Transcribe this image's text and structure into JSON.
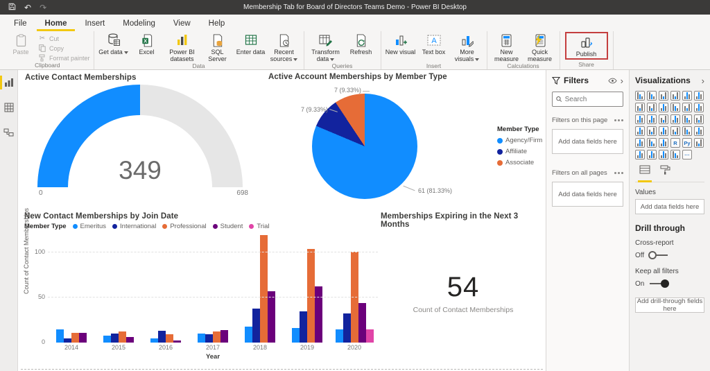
{
  "titlebar": {
    "title": "Membership Tab for Board of Directors Teams Demo - Power BI Desktop"
  },
  "ribbon": {
    "tabs": [
      "File",
      "Home",
      "Insert",
      "Modeling",
      "View",
      "Help"
    ],
    "active_tab": "Home",
    "groups": {
      "clipboard": {
        "label": "Clipboard",
        "paste": "Paste",
        "cut": "Cut",
        "copy": "Copy",
        "format_painter": "Format painter"
      },
      "data": {
        "label": "Data",
        "get_data": "Get data",
        "excel": "Excel",
        "power_bi_datasets": "Power BI datasets",
        "sql_server": "SQL Server",
        "enter_data": "Enter data",
        "recent_sources": "Recent sources"
      },
      "queries": {
        "label": "Queries",
        "transform_data": "Transform data",
        "refresh": "Refresh"
      },
      "insert": {
        "label": "Insert",
        "new_visual": "New visual",
        "text_box": "Text box",
        "more_visuals": "More visuals"
      },
      "calculations": {
        "label": "Calculations",
        "new_measure": "New measure",
        "quick_measure": "Quick measure"
      },
      "share": {
        "label": "Share",
        "publish": "Publish"
      }
    }
  },
  "sidebar": {
    "items": [
      {
        "name": "report-view",
        "active": true
      },
      {
        "name": "data-view",
        "active": false
      },
      {
        "name": "model-view",
        "active": false
      }
    ]
  },
  "chart_data": [
    {
      "type": "gauge",
      "title": "Active Contact Memberships",
      "value": 349,
      "min": 0,
      "max": 698,
      "fill_color": "#118DFF",
      "track_color": "#E6E6E6"
    },
    {
      "type": "pie",
      "title": "Active Account Memberships by Member Type",
      "legend_title": "Member Type",
      "legend_position": "right",
      "categories": [
        "Agency/Firm",
        "Affiliate",
        "Associate"
      ],
      "values": [
        61,
        7,
        7
      ],
      "percent_labels": [
        "61 (81.33%)",
        "7 (9.33%)",
        "7 (9.33%)"
      ],
      "colors": [
        "#118DFF",
        "#12239E",
        "#E66C37"
      ]
    },
    {
      "type": "bar",
      "title": "New Contact Memberships by Join Date",
      "legend_title": "Member Type",
      "legend_position": "top",
      "xlabel": "Year",
      "ylabel": "Count of Contact Memberships",
      "yticks": [
        0,
        50,
        100
      ],
      "ylim": [
        0,
        122
      ],
      "categories": [
        "2014",
        "2015",
        "2016",
        "2017",
        "2018",
        "2019",
        "2020"
      ],
      "series": [
        {
          "name": "Emeritus",
          "color": "#118DFF",
          "values": [
            15,
            8,
            5,
            10,
            18,
            16,
            15
          ]
        },
        {
          "name": "International",
          "color": "#12239E",
          "values": [
            5,
            10,
            13,
            9,
            38,
            35,
            32
          ]
        },
        {
          "name": "Professional",
          "color": "#E66C37",
          "values": [
            11,
            12,
            9,
            12,
            119,
            104,
            101
          ]
        },
        {
          "name": "Student",
          "color": "#6B007B",
          "values": [
            11,
            6,
            2,
            14,
            57,
            62,
            44
          ]
        },
        {
          "name": "Trial",
          "color": "#E044A7",
          "values": [
            0,
            0,
            0,
            0,
            0,
            0,
            15
          ]
        }
      ]
    },
    {
      "type": "card",
      "title": "Memberships Expiring in the Next 3 Months",
      "value": "54",
      "label": "Count of Contact Memberships"
    }
  ],
  "filters_panel": {
    "title": "Filters",
    "search_placeholder": "Search",
    "sections": [
      {
        "label": "Filters on this page",
        "placeholder": "Add data fields here"
      },
      {
        "label": "Filters on all pages",
        "placeholder": "Add data fields here"
      }
    ]
  },
  "visualizations_panel": {
    "title": "Visualizations",
    "icons": [
      {
        "name": "stacked-bar-chart"
      },
      {
        "name": "stacked-column-chart"
      },
      {
        "name": "clustered-bar-chart"
      },
      {
        "name": "clustered-column-chart"
      },
      {
        "name": "hundred-percent-stacked-bar-chart"
      },
      {
        "name": "hundred-percent-stacked-column-chart"
      },
      {
        "name": "line-chart"
      },
      {
        "name": "area-chart"
      },
      {
        "name": "stacked-area-chart"
      },
      {
        "name": "line-and-stacked-column-chart"
      },
      {
        "name": "line-and-clustered-column-chart"
      },
      {
        "name": "ribbon-chart"
      },
      {
        "name": "waterfall-chart"
      },
      {
        "name": "funnel-chart"
      },
      {
        "name": "scatter-chart"
      },
      {
        "name": "pie-chart"
      },
      {
        "name": "donut-chart"
      },
      {
        "name": "treemap"
      },
      {
        "name": "map"
      },
      {
        "name": "filled-map"
      },
      {
        "name": "shape-map"
      },
      {
        "name": "card"
      },
      {
        "name": "multi-row-card"
      },
      {
        "name": "kpi"
      },
      {
        "name": "slicer"
      },
      {
        "name": "table"
      },
      {
        "name": "matrix"
      },
      {
        "name": "r-script-visual",
        "text": "R"
      },
      {
        "name": "python-visual",
        "text": "Py"
      },
      {
        "name": "paginated-report"
      },
      {
        "name": "key-influencers"
      },
      {
        "name": "qa-visual"
      },
      {
        "name": "decomposition-tree"
      },
      {
        "name": "power-automate"
      },
      {
        "name": "more-visuals",
        "text": "···"
      }
    ],
    "values_label": "Values",
    "values_placeholder": "Add data fields here",
    "drill_through": {
      "title": "Drill through",
      "cross_report_label": "Cross-report",
      "cross_report_state": "Off",
      "keep_all_filters_label": "Keep all filters",
      "keep_all_filters_state": "On",
      "placeholder": "Add drill-through fields here"
    }
  },
  "colors": {
    "accent_yellow": "#F2C811",
    "titlebar": "#3b3a39",
    "highlight_red": "#C43E3E",
    "blue": "#118DFF",
    "navy": "#12239E",
    "orange": "#E66C37",
    "purple": "#6B007B",
    "magenta": "#E044A7"
  }
}
